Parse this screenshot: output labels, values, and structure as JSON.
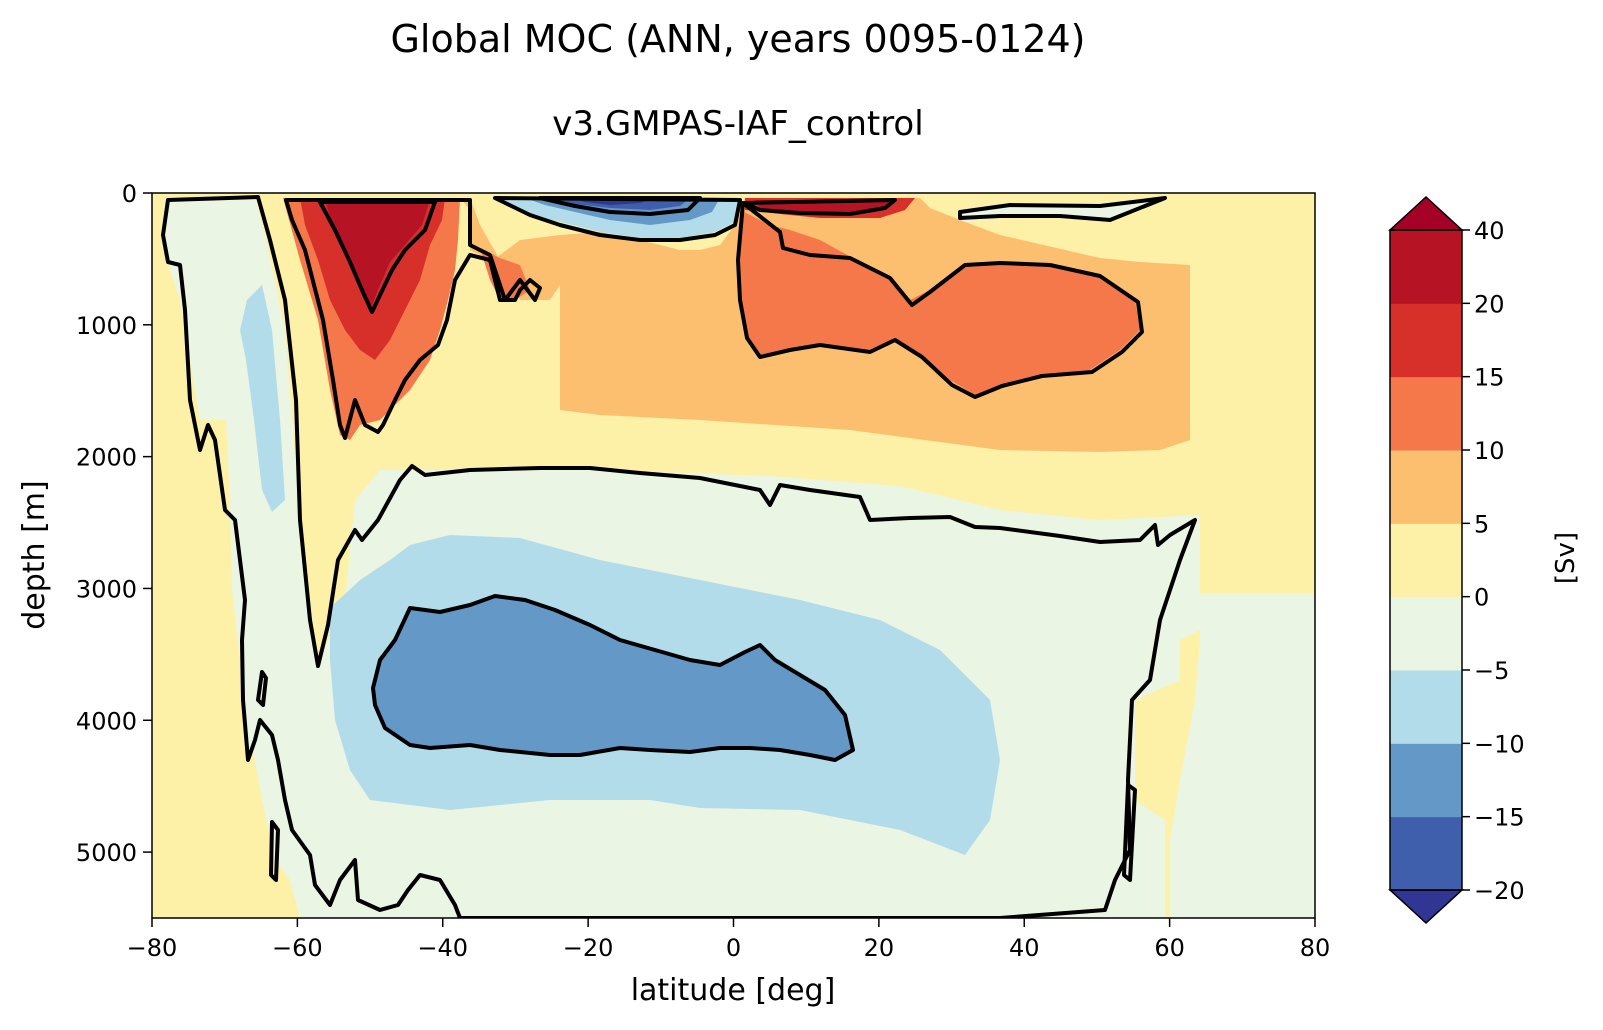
{
  "chart_data": {
    "type": "heatmap",
    "subtype": "filled-contour",
    "title": "Global MOC (ANN, years 0095-0124)",
    "subtitle": "v3.GMPAS-IAF_control",
    "xlabel": "latitude [deg]",
    "ylabel": "depth [m]",
    "xlim": [
      -80,
      80
    ],
    "ylim": [
      5500,
      0
    ],
    "x_ticks": [
      -80,
      -60,
      -40,
      -20,
      0,
      20,
      40,
      60,
      80
    ],
    "x_tick_labels": [
      "−80",
      "−60",
      "−40",
      "−20",
      "0",
      "20",
      "40",
      "60",
      "80"
    ],
    "y_ticks": [
      0,
      1000,
      2000,
      3000,
      4000,
      5000
    ],
    "y_tick_labels": [
      "0",
      "1000",
      "2000",
      "3000",
      "4000",
      "5000"
    ],
    "grid": false,
    "colorbar": {
      "label": "[Sv]",
      "extend": "both",
      "levels": [
        -20,
        -15,
        -10,
        -5,
        0,
        5,
        10,
        15,
        20,
        40
      ],
      "tick_labels": [
        "−20",
        "−15",
        "−10",
        "−5",
        "0",
        "5",
        "10",
        "15",
        "20",
        "40"
      ],
      "colors": [
        "#3f5fac",
        "#6398c7",
        "#b3dcea",
        "#eaf5e4",
        "#fdf1a7",
        "#fcbf70",
        "#f5784b",
        "#d72f2a",
        "#b61425"
      ],
      "under_color": "#313695",
      "over_color": "#a50026"
    },
    "contour_lines": [
      -10,
      0,
      10,
      20,
      30
    ],
    "features": [
      {
        "name": "NH upper overturning cell max",
        "lat": 35,
        "depth": 1000,
        "value_range": [
          10,
          15
        ]
      },
      {
        "name": "SH upper cell max",
        "lat": -50,
        "depth": 300,
        "value_range": [
          20,
          40
        ]
      },
      {
        "name": "Deep (AABW) cell min",
        "lat": -20,
        "depth": 3700,
        "value_range": [
          -15,
          -10
        ]
      },
      {
        "name": "Tropical surface negative cell",
        "lat": -10,
        "depth": 50,
        "value_range": [
          -40,
          -20
        ]
      },
      {
        "name": "Tropical surface positive cell",
        "lat": 10,
        "depth": 50,
        "value_range": [
          20,
          40
        ]
      }
    ]
  }
}
